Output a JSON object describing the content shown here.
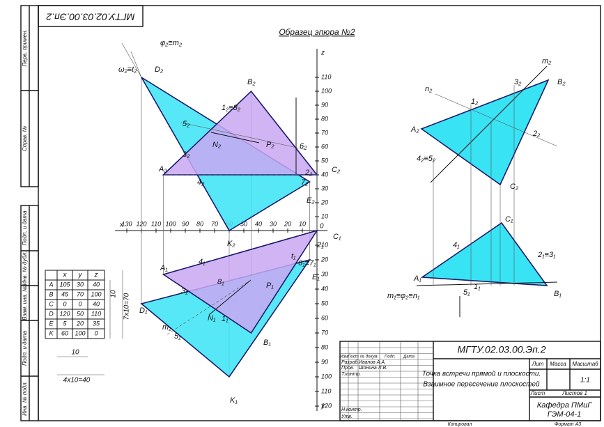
{
  "stamp": "МГТУ.02.03.00.Эп.2",
  "title": "Образец эпюра №2",
  "side_columns": [
    "Перв. примен.",
    "Справ. №",
    "Подп. и дата",
    "Инв. № дубл.",
    "Взам. инв. №",
    "Подп. и дата",
    "Инв. № подл."
  ],
  "axes": {
    "x_name": "x",
    "z_name": "z",
    "y_name": "y",
    "origin": 0,
    "x_ticks": [
      10,
      20,
      30,
      40,
      50,
      60,
      70,
      80,
      90,
      100,
      110,
      120,
      130
    ],
    "z_ticks": [
      10,
      20,
      30,
      40,
      50,
      60,
      70,
      80,
      90,
      100,
      110
    ],
    "y_ticks": [
      10,
      20,
      30,
      40,
      50,
      60,
      70,
      80,
      90,
      100,
      110,
      120
    ]
  },
  "table": {
    "header": [
      "x",
      "y",
      "z"
    ],
    "rows": [
      [
        "A",
        105,
        30,
        40
      ],
      [
        "B",
        45,
        70,
        100
      ],
      [
        "C",
        0,
        0,
        40
      ],
      [
        "D",
        120,
        50,
        110
      ],
      [
        "E",
        5,
        20,
        35
      ],
      [
        "K",
        60,
        100,
        0
      ]
    ]
  },
  "dimensions": [
    "10",
    "7x10=70",
    "10",
    "4x10=40"
  ],
  "labels": [
    "φ₂≡m₂",
    "ω₂≡t₂",
    "D₂",
    "B₂",
    "1₂≡8₂",
    "5₂",
    "N₂",
    "P₂",
    "6₂",
    "3₂",
    "A₂",
    "4₂",
    "2₂",
    "C₂",
    "7₂",
    "E₂",
    "K₂",
    "C₁",
    "2₁",
    "t₁",
    "6₁≡7₁",
    "A₁",
    "4₁",
    "8₁",
    "P₁",
    "E₁",
    "3₁",
    "D₁",
    "N₁",
    "1₁",
    "m₁",
    "5₁",
    "B₁",
    "K₁"
  ],
  "aux_labels": [
    "m₂",
    "n₂",
    "1₂",
    "3₂",
    "B₂",
    "A₂",
    "2₂",
    "4₂≡5₂",
    "C₂",
    "C₁",
    "4₁",
    "2₁≡3₁",
    "A₁",
    "B₁",
    "m₁≡φ₂≡n₁",
    "5₁",
    "1₁"
  ],
  "title_block": {
    "code": "МГТУ.02.03.00.Эп.2",
    "name_line1": "Точка встречи прямой и плоскости.",
    "name_line2": "Взаимное пересечение плоскостей",
    "lit": "Лит",
    "mass": "Масса",
    "scale": "Масштаб",
    "scale_value": "1:1",
    "sheet": "Лист",
    "sheets": "Листов 1",
    "dept": "Кафедра ПМиГ",
    "group": "ГЭМ-04-1",
    "columns": [
      "Изм",
      "Лист",
      "№ докум.",
      "Подп.",
      "Дата"
    ],
    "roles": [
      "Разраб.",
      "Пров.",
      "Т.контр.",
      "Н.контр.",
      "Утв."
    ],
    "developer": "Иванов А.А.",
    "checker": "Шонина Л.В.",
    "copied": "Копировал",
    "format": "Формат А3"
  }
}
